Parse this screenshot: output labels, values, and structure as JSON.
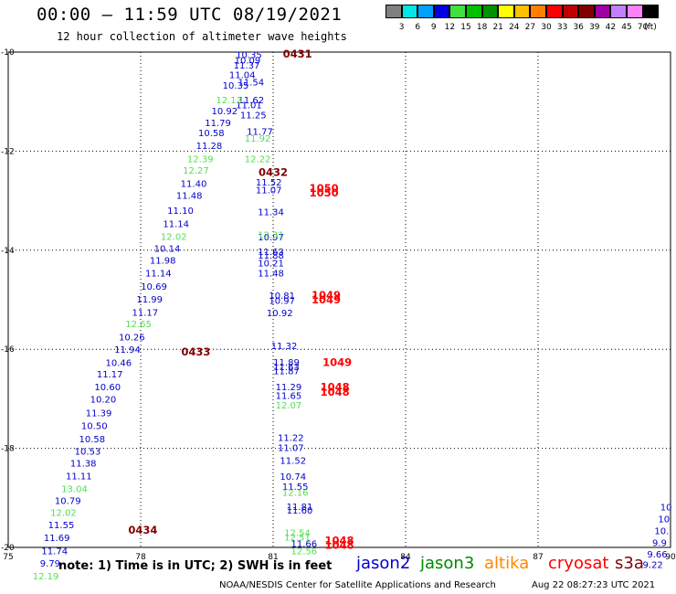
{
  "header": {
    "title": "00:00 – 11:59 UTC 08/19/2021",
    "subtitle": "12 hour collection of altimeter wave heights"
  },
  "legend": {
    "colors": [
      "#808080",
      "#00e5e5",
      "#00a0ff",
      "#0000e0",
      "#40e040",
      "#00c000",
      "#009000",
      "#ffff00",
      "#ffc000",
      "#ff8000",
      "#ff0000",
      "#c00000",
      "#800000",
      "#a000a0",
      "#c080ff",
      "#ff80ff",
      "#000000"
    ],
    "labels": [
      "",
      "3",
      "6",
      "9",
      "12",
      "15",
      "18",
      "21",
      "24",
      "27",
      "30",
      "33",
      "36",
      "39",
      "42",
      "45",
      "70"
    ],
    "unit": "(ft)"
  },
  "footer": {
    "note": "note: 1) Time is in UTC; 2) SWH is in feet",
    "satellites": [
      {
        "name": "jason2",
        "color": "#0000cc"
      },
      {
        "name": "jason3",
        "color": "#008800"
      },
      {
        "name": "altika",
        "color": "#ff8800"
      },
      {
        "name": "cryosat",
        "color": "#ff0000"
      },
      {
        "name": "s3a",
        "color": "#800000"
      }
    ],
    "credit": "NOAA/NESDIS Center for Satellite Applications and Research",
    "timestamp": "Aug 22 08:27:23 UTC 2021"
  },
  "chart_data": {
    "type": "scatter",
    "lon_range": [
      75,
      90
    ],
    "lat_range": [
      -20,
      -10
    ],
    "x_ticks": [
      "75",
      "78",
      "81",
      "84",
      "87",
      "90"
    ],
    "y_ticks": [
      "-10",
      "-12",
      "-14",
      "-16",
      "-18",
      "-20"
    ],
    "series": [
      {
        "name": "jason2",
        "color": "#0000cc",
        "points": [
          {
            "lon": 80.45,
            "lat": -10.05,
            "swh": "10.35"
          },
          {
            "lon": 80.42,
            "lat": -10.16,
            "swh": "10.09"
          },
          {
            "lon": 80.4,
            "lat": -10.26,
            "swh": "11.37"
          },
          {
            "lon": 80.3,
            "lat": -10.45,
            "swh": "11.04"
          },
          {
            "lon": 80.15,
            "lat": -10.66,
            "swh": "10.35"
          },
          {
            "lon": 80.5,
            "lat": -10.6,
            "swh": "11.54"
          },
          {
            "lon": 80.5,
            "lat": -10.96,
            "swh": "11.62"
          },
          {
            "lon": 80.45,
            "lat": -11.06,
            "swh": "11.01"
          },
          {
            "lon": 79.9,
            "lat": -11.18,
            "swh": "10.92"
          },
          {
            "lon": 80.55,
            "lat": -11.26,
            "swh": "11.25"
          },
          {
            "lon": 79.75,
            "lat": -11.42,
            "swh": "11.79"
          },
          {
            "lon": 80.7,
            "lat": -11.6,
            "swh": "11.77"
          },
          {
            "lon": 79.6,
            "lat": -11.62,
            "swh": "10.58"
          },
          {
            "lon": 79.55,
            "lat": -11.88,
            "swh": "11.28"
          },
          {
            "lon": 79.2,
            "lat": -12.65,
            "swh": "11.40"
          },
          {
            "lon": 80.9,
            "lat": -12.62,
            "swh": "11.52"
          },
          {
            "lon": 80.9,
            "lat": -12.78,
            "swh": "11.07"
          },
          {
            "lon": 79.1,
            "lat": -12.89,
            "swh": "11.48"
          },
          {
            "lon": 78.9,
            "lat": -13.19,
            "swh": "11.10"
          },
          {
            "lon": 80.95,
            "lat": -13.22,
            "swh": "11.34"
          },
          {
            "lon": 78.8,
            "lat": -13.46,
            "swh": "11.14"
          },
          {
            "lon": 80.95,
            "lat": -13.73,
            "swh": "10.97"
          },
          {
            "lon": 78.6,
            "lat": -13.96,
            "swh": "10.14"
          },
          {
            "lon": 80.95,
            "lat": -14.02,
            "swh": "11.63"
          },
          {
            "lon": 78.5,
            "lat": -14.2,
            "swh": "11.98"
          },
          {
            "lon": 80.95,
            "lat": -14.1,
            "swh": "11.88"
          },
          {
            "lon": 80.95,
            "lat": -14.25,
            "swh": "10.21"
          },
          {
            "lon": 78.4,
            "lat": -14.46,
            "swh": "11.14"
          },
          {
            "lon": 80.95,
            "lat": -14.46,
            "swh": "11.48"
          },
          {
            "lon": 78.3,
            "lat": -14.72,
            "swh": "10.69"
          },
          {
            "lon": 78.2,
            "lat": -14.98,
            "swh": "11.99"
          },
          {
            "lon": 81.2,
            "lat": -14.91,
            "swh": "10.81"
          },
          {
            "lon": 81.2,
            "lat": -15.01,
            "swh": "10.97"
          },
          {
            "lon": 78.1,
            "lat": -15.25,
            "swh": "11.17"
          },
          {
            "lon": 81.15,
            "lat": -15.26,
            "swh": "10.92"
          },
          {
            "lon": 77.8,
            "lat": -15.75,
            "swh": "10.26"
          },
          {
            "lon": 77.7,
            "lat": -16.0,
            "swh": "11.94"
          },
          {
            "lon": 81.25,
            "lat": -15.92,
            "swh": "11.32"
          },
          {
            "lon": 77.5,
            "lat": -16.26,
            "swh": "10.46"
          },
          {
            "lon": 81.3,
            "lat": -16.25,
            "swh": "11.89"
          },
          {
            "lon": 81.3,
            "lat": -16.35,
            "swh": "11.63"
          },
          {
            "lon": 81.3,
            "lat": -16.43,
            "swh": "11.87"
          },
          {
            "lon": 77.3,
            "lat": -16.49,
            "swh": "11.17"
          },
          {
            "lon": 77.25,
            "lat": -16.75,
            "swh": "10.60"
          },
          {
            "lon": 77.15,
            "lat": -17.0,
            "swh": "10.20"
          },
          {
            "lon": 81.35,
            "lat": -16.75,
            "swh": "11.29"
          },
          {
            "lon": 81.35,
            "lat": -16.93,
            "swh": "11.65"
          },
          {
            "lon": 77.05,
            "lat": -17.28,
            "swh": "11.39"
          },
          {
            "lon": 76.95,
            "lat": -17.54,
            "swh": "10.50"
          },
          {
            "lon": 76.9,
            "lat": -17.8,
            "swh": "10.58"
          },
          {
            "lon": 76.8,
            "lat": -18.05,
            "swh": "10.53"
          },
          {
            "lon": 81.4,
            "lat": -17.78,
            "swh": "11.22"
          },
          {
            "lon": 81.4,
            "lat": -17.98,
            "swh": "11.07"
          },
          {
            "lon": 76.7,
            "lat": -18.29,
            "swh": "11.38"
          },
          {
            "lon": 81.45,
            "lat": -18.24,
            "swh": "11.52"
          },
          {
            "lon": 76.6,
            "lat": -18.55,
            "swh": "11.11"
          },
          {
            "lon": 81.45,
            "lat": -18.56,
            "swh": "10.74"
          },
          {
            "lon": 81.5,
            "lat": -18.76,
            "swh": "11.55"
          },
          {
            "lon": 76.35,
            "lat": -19.05,
            "swh": "10.79"
          },
          {
            "lon": 81.6,
            "lat": -19.17,
            "swh": "11.81"
          },
          {
            "lon": 81.6,
            "lat": -19.24,
            "swh": "11.60"
          },
          {
            "lon": 76.2,
            "lat": -19.54,
            "swh": "11.55"
          },
          {
            "lon": 76.1,
            "lat": -19.8,
            "swh": "11.69"
          },
          {
            "lon": 76.05,
            "lat": -20.06,
            "swh": "11.74"
          },
          {
            "lon": 81.7,
            "lat": -19.92,
            "swh": "11.66"
          },
          {
            "lon": 75.95,
            "lat": -20.31,
            "swh": "9.79"
          },
          {
            "lon": 89.9,
            "lat": -19.18,
            "swh": "10"
          },
          {
            "lon": 89.85,
            "lat": -19.42,
            "swh": "10"
          },
          {
            "lon": 89.8,
            "lat": -19.66,
            "swh": "10."
          },
          {
            "lon": 89.75,
            "lat": -19.9,
            "swh": "9.9"
          },
          {
            "lon": 89.7,
            "lat": -20.13,
            "swh": "9.66"
          },
          {
            "lon": 89.6,
            "lat": -20.34,
            "swh": "9.22"
          }
        ]
      },
      {
        "name": "jason3",
        "color": "#55dd55",
        "points": [
          {
            "lon": 80.0,
            "lat": -10.96,
            "swh": "12.13"
          },
          {
            "lon": 80.65,
            "lat": -11.73,
            "swh": "11.92"
          },
          {
            "lon": 79.35,
            "lat": -12.15,
            "swh": "12.39"
          },
          {
            "lon": 80.65,
            "lat": -12.15,
            "swh": "12.22"
          },
          {
            "lon": 79.25,
            "lat": -12.38,
            "swh": "12.27"
          },
          {
            "lon": 78.75,
            "lat": -13.72,
            "swh": "12.02"
          },
          {
            "lon": 80.95,
            "lat": -13.68,
            "swh": "12.31"
          },
          {
            "lon": 77.95,
            "lat": -15.48,
            "swh": "12.65"
          },
          {
            "lon": 81.35,
            "lat": -17.12,
            "swh": "12.07"
          },
          {
            "lon": 76.5,
            "lat": -18.81,
            "swh": "13.04"
          },
          {
            "lon": 81.5,
            "lat": -18.88,
            "swh": "12.16"
          },
          {
            "lon": 76.25,
            "lat": -19.29,
            "swh": "12.02"
          },
          {
            "lon": 81.55,
            "lat": -19.7,
            "swh": "12.54"
          },
          {
            "lon": 81.55,
            "lat": -19.79,
            "swh": "12.51"
          },
          {
            "lon": 81.7,
            "lat": -20.06,
            "swh": "12.56"
          },
          {
            "lon": 75.85,
            "lat": -20.57,
            "swh": "12.19"
          }
        ]
      },
      {
        "name": "cryosat",
        "color": "#ff0000",
        "points": [
          {
            "lon": 82.15,
            "lat": -12.75,
            "swh": "1050"
          },
          {
            "lon": 82.15,
            "lat": -12.84,
            "swh": "1050"
          },
          {
            "lon": 82.2,
            "lat": -14.91,
            "swh": "1049"
          },
          {
            "lon": 82.2,
            "lat": -15.0,
            "swh": "1049"
          },
          {
            "lon": 82.45,
            "lat": -16.26,
            "swh": "1049"
          },
          {
            "lon": 82.4,
            "lat": -16.76,
            "swh": "1048"
          },
          {
            "lon": 82.4,
            "lat": -16.86,
            "swh": "1048"
          },
          {
            "lon": 82.5,
            "lat": -19.86,
            "swh": "1048"
          },
          {
            "lon": 82.5,
            "lat": -19.95,
            "swh": "1048"
          }
        ]
      },
      {
        "name": "s3a",
        "color": "#800000",
        "points": [
          {
            "lon": 81.55,
            "lat": -10.04,
            "swh": "0431"
          },
          {
            "lon": 81.0,
            "lat": -12.43,
            "swh": "0432"
          },
          {
            "lon": 79.25,
            "lat": -16.05,
            "swh": "0433"
          },
          {
            "lon": 78.05,
            "lat": -19.65,
            "swh": "0434"
          }
        ]
      }
    ]
  }
}
